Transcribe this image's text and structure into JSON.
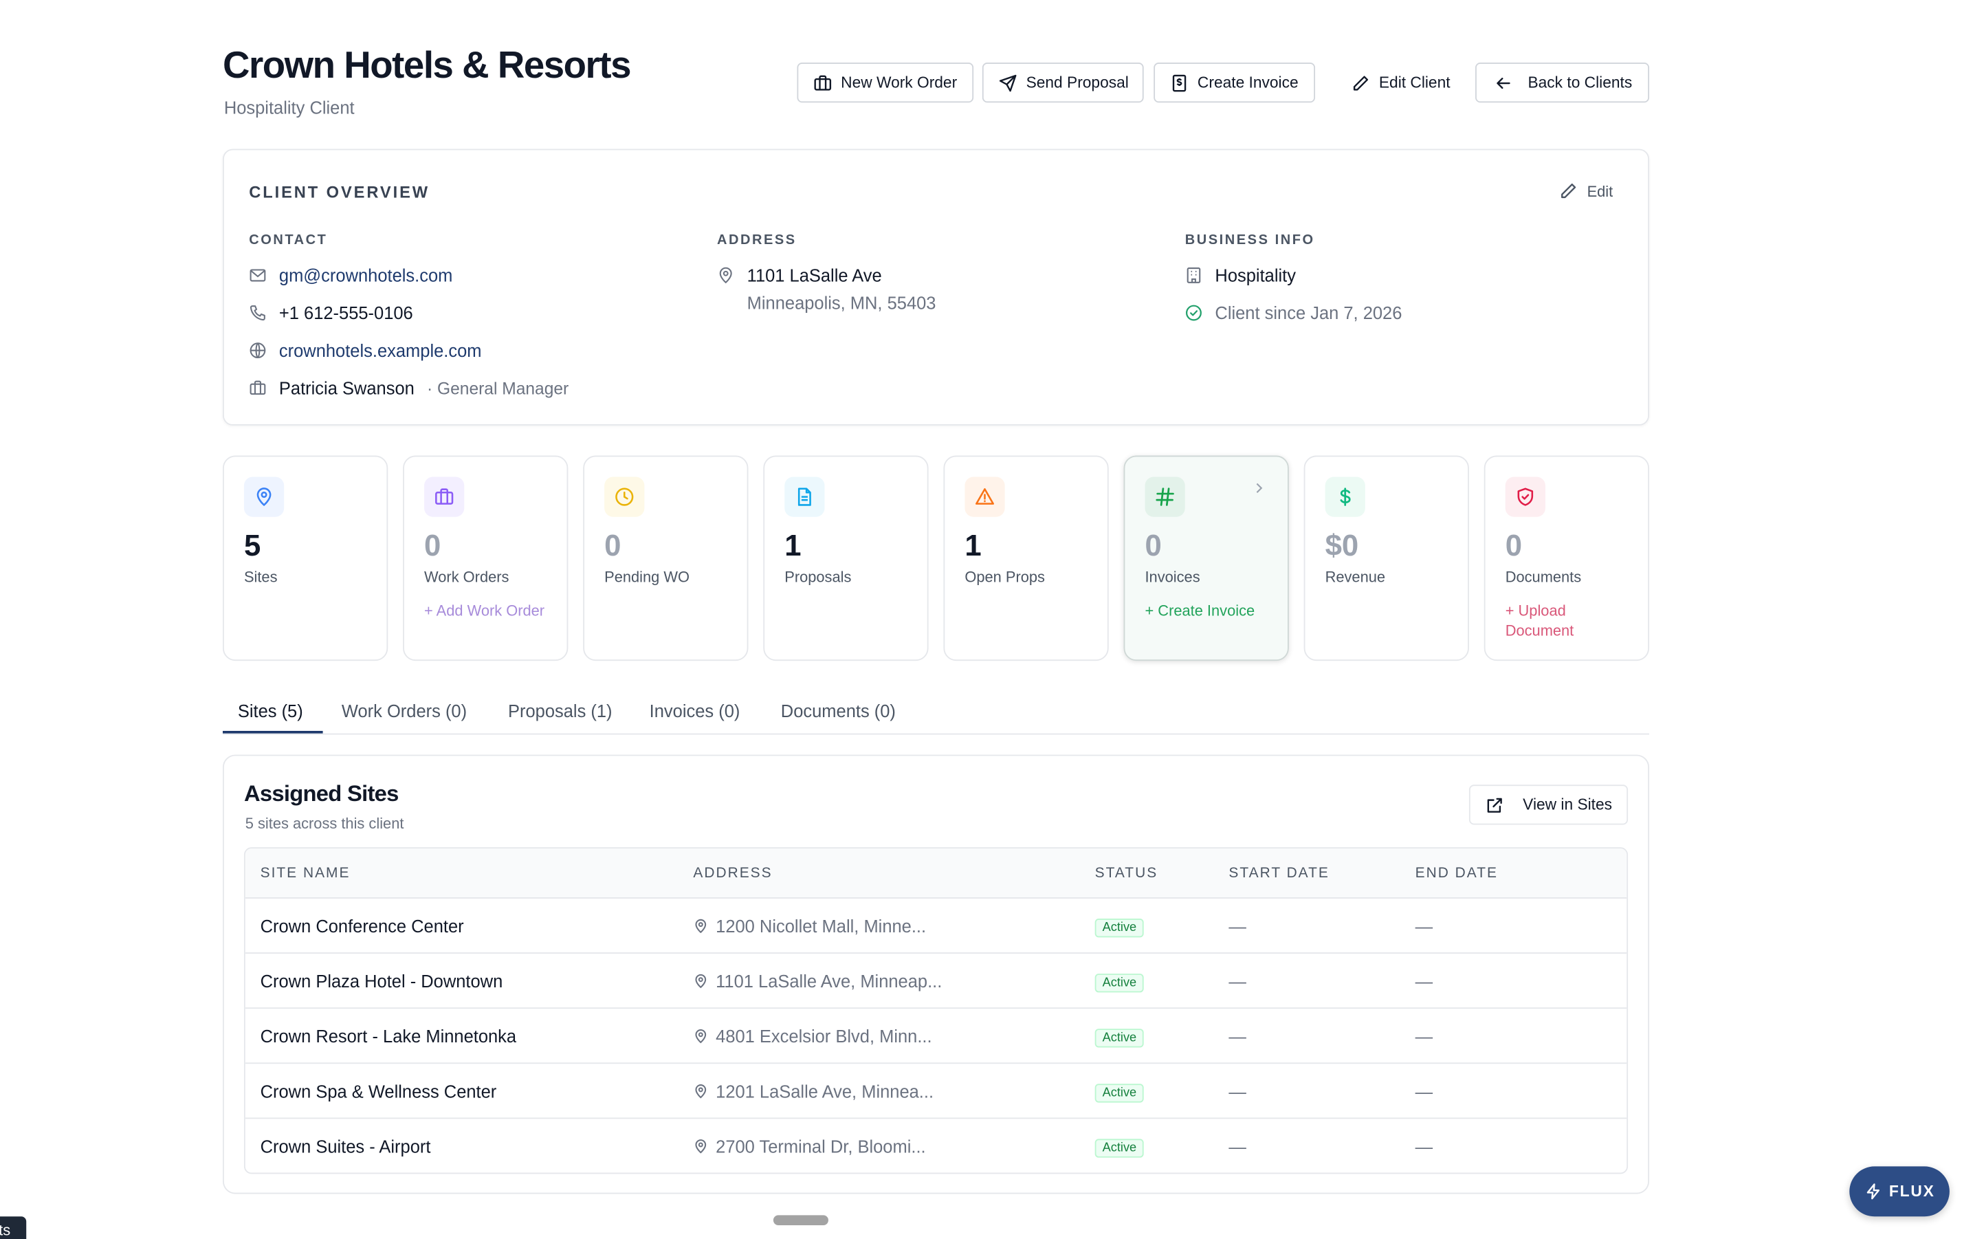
{
  "header": {
    "title": "Crown Hotels & Resorts",
    "subtitle": "Hospitality Client",
    "actions": {
      "new_work_order": "New Work Order",
      "send_proposal": "Send Proposal",
      "create_invoice": "Create Invoice",
      "edit_client": "Edit Client",
      "back": "Back to Clients"
    }
  },
  "overview": {
    "title": "CLIENT OVERVIEW",
    "edit_label": "Edit",
    "contact": {
      "label": "CONTACT",
      "email": "gm@crownhotels.com",
      "phone": "+1 612-555-0106",
      "website": "crownhotels.example.com",
      "person": "Patricia Swanson",
      "role": "· General Manager"
    },
    "address": {
      "label": "ADDRESS",
      "line1": "1101 LaSalle Ave",
      "line2": "Minneapolis, MN, 55403"
    },
    "business": {
      "label": "BUSINESS INFO",
      "industry": "Hospitality",
      "since": "Client since Jan 7, 2026"
    }
  },
  "stats": [
    {
      "value": "5",
      "label": "Sites",
      "action": "",
      "icon": "map-pin-icon",
      "color": "#3b82f6",
      "bg": "#eef4ff"
    },
    {
      "value": "0",
      "label": "Work Orders",
      "action": "+ Add Work Order",
      "icon": "briefcase-icon",
      "color": "#8b5cf6",
      "bg": "#f3efff"
    },
    {
      "value": "0",
      "label": "Pending WO",
      "action": "",
      "icon": "clock-icon",
      "color": "#eab308",
      "bg": "#fef9e7"
    },
    {
      "value": "1",
      "label": "Proposals",
      "action": "",
      "icon": "document-icon",
      "color": "#0ea5e9",
      "bg": "#ecf8fd"
    },
    {
      "value": "1",
      "label": "Open Props",
      "action": "",
      "icon": "warning-icon",
      "color": "#f97316",
      "bg": "#fff3ea"
    },
    {
      "value": "0",
      "label": "Invoices",
      "action": "+ Create Invoice",
      "icon": "hash-icon",
      "color": "#16a34a",
      "bg": "#e8f6ee"
    },
    {
      "value": "$0",
      "label": "Revenue",
      "action": "",
      "icon": "dollar-icon",
      "color": "#10b981",
      "bg": "#ecfaf4"
    },
    {
      "value": "0",
      "label": "Documents",
      "action": "+ Upload Document",
      "icon": "shield-icon",
      "color": "#e11d48",
      "bg": "#fdeef1"
    }
  ],
  "tabs": [
    "Sites (5)",
    "Work Orders (0)",
    "Proposals (1)",
    "Invoices (0)",
    "Documents (0)"
  ],
  "sites": {
    "title": "Assigned Sites",
    "subtitle": "5 sites across this client",
    "view_button": "View in Sites",
    "columns": [
      "SITE NAME",
      "ADDRESS",
      "STATUS",
      "START DATE",
      "END DATE"
    ],
    "rows": [
      {
        "name": "Crown Conference Center",
        "address": "1200 Nicollet Mall, Minne...",
        "status": "Active",
        "start": "—",
        "end": "—"
      },
      {
        "name": "Crown Plaza Hotel - Downtown",
        "address": "1101 LaSalle Ave, Minneap...",
        "status": "Active",
        "start": "—",
        "end": "—"
      },
      {
        "name": "Crown Resort - Lake Minnetonka",
        "address": "4801 Excelsior Blvd, Minn...",
        "status": "Active",
        "start": "—",
        "end": "—"
      },
      {
        "name": "Crown Spa & Wellness Center",
        "address": "1201 LaSalle Ave, Minnea...",
        "status": "Active",
        "start": "—",
        "end": "—"
      },
      {
        "name": "Crown Suites - Airport",
        "address": "2700 Terminal Dr, Bloomi...",
        "status": "Active",
        "start": "—",
        "end": "—"
      }
    ]
  },
  "flux_button": "FLUX",
  "corner_tab": "ts"
}
